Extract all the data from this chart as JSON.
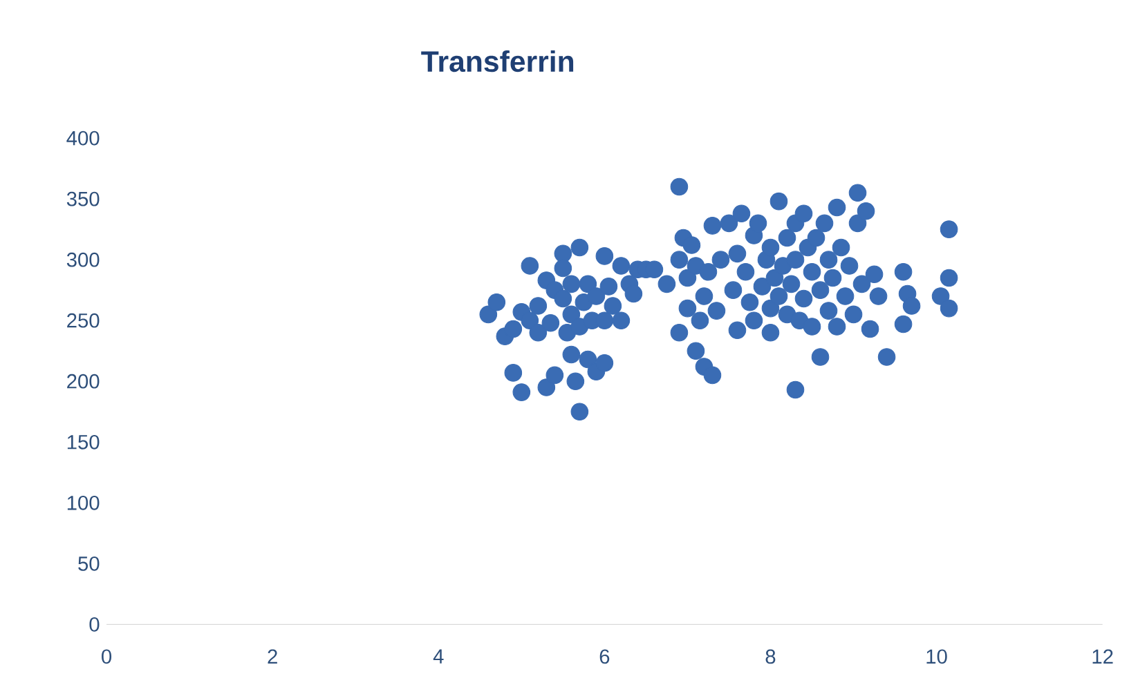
{
  "chart_data": {
    "type": "scatter",
    "title": "Transferrin",
    "color": "#3a6cb4",
    "grid": false,
    "xlim": [
      0,
      12
    ],
    "ylim": [
      0,
      400
    ],
    "xticks": [
      0,
      2,
      4,
      6,
      8,
      10,
      12
    ],
    "yticks": [
      0,
      50,
      100,
      150,
      200,
      250,
      300,
      350,
      400
    ],
    "x": [
      4.6,
      4.7,
      4.8,
      4.9,
      4.9,
      5.0,
      5.0,
      5.1,
      5.1,
      5.2,
      5.2,
      5.3,
      5.3,
      5.35,
      5.4,
      5.4,
      5.5,
      5.5,
      5.5,
      5.55,
      5.6,
      5.6,
      5.6,
      5.65,
      5.7,
      5.7,
      5.7,
      5.75,
      5.8,
      5.8,
      5.85,
      5.9,
      5.9,
      6.0,
      6.0,
      6.0,
      6.05,
      6.1,
      6.2,
      6.2,
      6.3,
      6.35,
      6.4,
      6.5,
      6.6,
      6.75,
      6.9,
      6.9,
      6.9,
      6.95,
      7.0,
      7.0,
      7.05,
      7.1,
      7.1,
      7.15,
      7.2,
      7.2,
      7.25,
      7.3,
      7.3,
      7.35,
      7.4,
      7.5,
      7.55,
      7.6,
      7.6,
      7.65,
      7.7,
      7.75,
      7.8,
      7.8,
      7.85,
      7.9,
      7.95,
      8.0,
      8.0,
      8.0,
      8.05,
      8.1,
      8.1,
      8.15,
      8.2,
      8.2,
      8.25,
      8.3,
      8.3,
      8.3,
      8.35,
      8.4,
      8.4,
      8.45,
      8.5,
      8.5,
      8.55,
      8.6,
      8.6,
      8.65,
      8.7,
      8.7,
      8.75,
      8.8,
      8.8,
      8.85,
      8.9,
      8.95,
      9.0,
      9.05,
      9.05,
      9.1,
      9.15,
      9.2,
      9.25,
      9.3,
      9.4,
      9.6,
      9.6,
      9.65,
      9.7,
      10.05,
      10.15,
      10.15,
      10.15
    ],
    "values": [
      255,
      265,
      237,
      243,
      207,
      191,
      257,
      295,
      250,
      240,
      262,
      283,
      195,
      248,
      205,
      275,
      305,
      293,
      268,
      240,
      222,
      255,
      280,
      200,
      245,
      310,
      175,
      265,
      218,
      280,
      250,
      208,
      270,
      215,
      303,
      250,
      278,
      262,
      250,
      295,
      280,
      272,
      292,
      292,
      292,
      280,
      360,
      300,
      240,
      318,
      260,
      285,
      312,
      225,
      295,
      250,
      212,
      270,
      290,
      205,
      328,
      258,
      300,
      330,
      275,
      242,
      305,
      338,
      290,
      265,
      320,
      250,
      330,
      278,
      300,
      260,
      310,
      240,
      285,
      348,
      270,
      295,
      255,
      318,
      280,
      193,
      330,
      300,
      250,
      338,
      268,
      310,
      290,
      245,
      318,
      220,
      275,
      330,
      300,
      258,
      285,
      343,
      245,
      310,
      270,
      295,
      255,
      330,
      355,
      280,
      340,
      243,
      288,
      270,
      220,
      290,
      247,
      272,
      262,
      270,
      325,
      285,
      260
    ]
  }
}
